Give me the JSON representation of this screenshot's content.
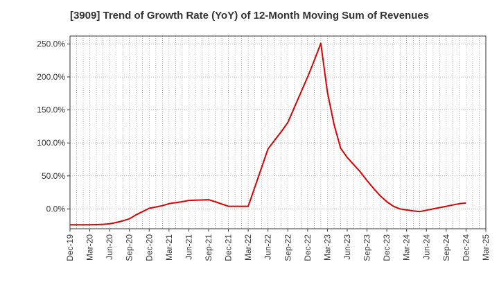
{
  "chart_data": {
    "type": "line",
    "title": "[3909]  Trend of Growth Rate (YoY) of 12-Month Moving Sum of Revenues",
    "xlabel": "",
    "ylabel": "",
    "ylim": [
      -30,
      262
    ],
    "yticks": [
      0,
      50,
      100,
      150,
      200,
      250
    ],
    "ytick_labels": [
      "0.0%",
      "50.0%",
      "100.0%",
      "150.0%",
      "200.0%",
      "250.0%"
    ],
    "xtick_labels": [
      "Dec-19",
      "Mar-20",
      "Jun-20",
      "Sep-20",
      "Dec-20",
      "Mar-21",
      "Jun-21",
      "Sep-21",
      "Dec-21",
      "Mar-22",
      "Jun-22",
      "Sep-22",
      "Dec-22",
      "Mar-23",
      "Jun-23",
      "Sep-23",
      "Dec-23",
      "Mar-24",
      "Jun-24",
      "Sep-24",
      "Dec-24",
      "Mar-25"
    ],
    "grid": true,
    "line_color": "#dd0000",
    "series": [
      {
        "x": [
          "Dec-19",
          "Jan-20",
          "Feb-20",
          "Mar-20",
          "Apr-20",
          "May-20",
          "Jun-20",
          "Jul-20",
          "Aug-20",
          "Sep-20",
          "Oct-20",
          "Nov-20",
          "Dec-20",
          "Jan-21",
          "Feb-21",
          "Mar-21",
          "Apr-21",
          "May-21",
          "Jun-21",
          "Jul-21",
          "Aug-21",
          "Sep-21",
          "Oct-21",
          "Nov-21",
          "Dec-21",
          "Jan-22",
          "Feb-22",
          "Mar-22",
          "Apr-22",
          "May-22",
          "Jun-22",
          "Jul-22",
          "Aug-22",
          "Sep-22",
          "Oct-22",
          "Nov-22",
          "Dec-22",
          "Jan-23",
          "Feb-23",
          "Mar-23",
          "Apr-23",
          "May-23",
          "Jun-23",
          "Jul-23",
          "Aug-23",
          "Sep-23",
          "Oct-23",
          "Nov-23",
          "Dec-23",
          "Jan-24",
          "Feb-24",
          "Mar-24",
          "Apr-24",
          "May-24",
          "Jun-24",
          "Jul-24",
          "Aug-24",
          "Sep-24",
          "Oct-24",
          "Nov-24",
          "Dec-24"
        ],
        "values": [
          -24,
          -24,
          -24,
          -24,
          -23.7,
          -23.3,
          -22.5,
          -20.5,
          -18,
          -15,
          -9,
          -4,
          1,
          3,
          5,
          8,
          9.5,
          11,
          13,
          13.3,
          13.6,
          14,
          11,
          7.5,
          4,
          4,
          4,
          4,
          33,
          62,
          91,
          104,
          117,
          131,
          154,
          177,
          200,
          225,
          251,
          177,
          128,
          92,
          78,
          67,
          56,
          43,
          31,
          20,
          11,
          4,
          0,
          -1.5,
          -3,
          -4,
          -2,
          0,
          2,
          4,
          6,
          8,
          9
        ]
      }
    ]
  }
}
